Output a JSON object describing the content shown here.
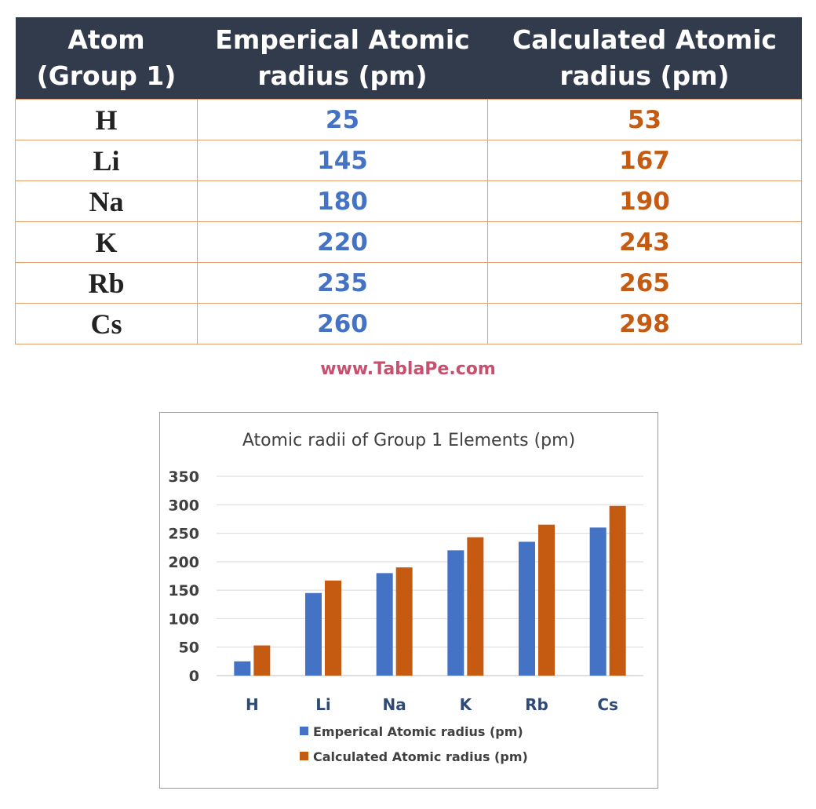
{
  "table": {
    "headers": [
      [
        "Atom",
        "(Group 1)"
      ],
      [
        "Emperical Atomic",
        "radius (pm)"
      ],
      [
        "Calculated Atomic",
        "radius (pm)"
      ]
    ],
    "rows": [
      {
        "atom": "H",
        "emp": "25",
        "calc": "53"
      },
      {
        "atom": "Li",
        "emp": "145",
        "calc": "167"
      },
      {
        "atom": "Na",
        "emp": "180",
        "calc": "190"
      },
      {
        "atom": "K",
        "emp": "220",
        "calc": "243"
      },
      {
        "atom": "Rb",
        "emp": "235",
        "calc": "265"
      },
      {
        "atom": "Cs",
        "emp": "260",
        "calc": "298"
      }
    ],
    "colors": {
      "header_bg": "#323b4c",
      "emp": "#4472c4",
      "calc": "#c55a11",
      "border": "#e7a06d"
    }
  },
  "watermark": "www.TablaPe.com",
  "chart_data": {
    "type": "bar",
    "title": "Atomic radii of Group 1 Elements (pm)",
    "categories": [
      "H",
      "Li",
      "Na",
      "K",
      "Rb",
      "Cs"
    ],
    "series": [
      {
        "name": "Emperical Atomic radius (pm)",
        "values": [
          25,
          145,
          180,
          220,
          235,
          260
        ],
        "color": "#4472c4"
      },
      {
        "name": "Calculated Atomic radius (pm)",
        "values": [
          53,
          167,
          190,
          243,
          265,
          298
        ],
        "color": "#c55a11"
      }
    ],
    "ylim": [
      0,
      350
    ],
    "yticks": [
      0,
      50,
      100,
      150,
      200,
      250,
      300,
      350
    ],
    "grid": true,
    "legend": "bottom",
    "xlabel": "",
    "ylabel": ""
  }
}
